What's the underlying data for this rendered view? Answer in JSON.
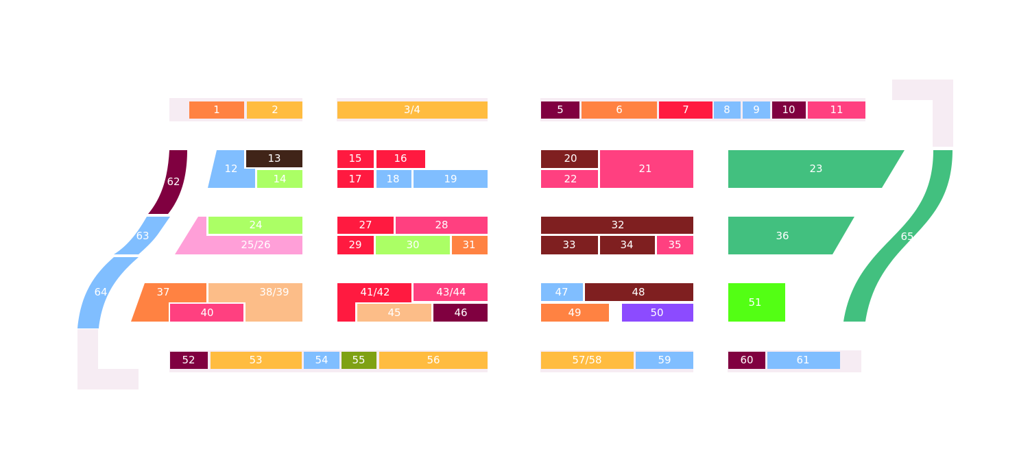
{
  "colors": {
    "orange": "#FF8242",
    "amber": "#FFBC40",
    "maroon": "#800040",
    "red": "#FF1A40",
    "sky": "#80BEFF",
    "pink": "#FF4080",
    "darkbrown": "#402418",
    "brown": "#7F1F20",
    "lime": "#ABFF65",
    "pinklight": "#FF9FD8",
    "peach": "#FCBD88",
    "green": "#42C07F",
    "brightgreen": "#53FF14",
    "olive": "#7FA114",
    "purple": "#8C4BFF",
    "frame": "#F6ECF3"
  },
  "blocks": [
    {
      "id": "1",
      "label": "1",
      "color": "orange"
    },
    {
      "id": "2",
      "label": "2",
      "color": "amber"
    },
    {
      "id": "3-4",
      "label": "3/4",
      "color": "amber"
    },
    {
      "id": "5",
      "label": "5",
      "color": "maroon"
    },
    {
      "id": "6",
      "label": "6",
      "color": "orange"
    },
    {
      "id": "7",
      "label": "7",
      "color": "red"
    },
    {
      "id": "8",
      "label": "8",
      "color": "sky"
    },
    {
      "id": "9",
      "label": "9",
      "color": "sky"
    },
    {
      "id": "10",
      "label": "10",
      "color": "maroon"
    },
    {
      "id": "11",
      "label": "11",
      "color": "pink"
    },
    {
      "id": "12",
      "label": "12",
      "color": "sky"
    },
    {
      "id": "13",
      "label": "13",
      "color": "darkbrown"
    },
    {
      "id": "14",
      "label": "14",
      "color": "lime"
    },
    {
      "id": "15",
      "label": "15",
      "color": "red"
    },
    {
      "id": "16",
      "label": "16",
      "color": "red"
    },
    {
      "id": "17",
      "label": "17",
      "color": "red"
    },
    {
      "id": "18",
      "label": "18",
      "color": "sky"
    },
    {
      "id": "19",
      "label": "19",
      "color": "sky"
    },
    {
      "id": "20",
      "label": "20",
      "color": "brown"
    },
    {
      "id": "21",
      "label": "21",
      "color": "pink"
    },
    {
      "id": "22",
      "label": "22",
      "color": "pink"
    },
    {
      "id": "23",
      "label": "23",
      "color": "green"
    },
    {
      "id": "24",
      "label": "24",
      "color": "lime"
    },
    {
      "id": "25-26",
      "label": "25/26",
      "color": "pinklight"
    },
    {
      "id": "27",
      "label": "27",
      "color": "red"
    },
    {
      "id": "28",
      "label": "28",
      "color": "pink"
    },
    {
      "id": "29",
      "label": "29",
      "color": "red"
    },
    {
      "id": "30",
      "label": "30",
      "color": "lime"
    },
    {
      "id": "31",
      "label": "31",
      "color": "orange"
    },
    {
      "id": "32",
      "label": "32",
      "color": "brown"
    },
    {
      "id": "33",
      "label": "33",
      "color": "brown"
    },
    {
      "id": "34",
      "label": "34",
      "color": "brown"
    },
    {
      "id": "35",
      "label": "35",
      "color": "pink"
    },
    {
      "id": "36",
      "label": "36",
      "color": "green"
    },
    {
      "id": "37",
      "label": "37",
      "color": "orange"
    },
    {
      "id": "38-39",
      "label": "38/39",
      "color": "peach"
    },
    {
      "id": "40",
      "label": "40",
      "color": "pink"
    },
    {
      "id": "41-42",
      "label": "41/42",
      "color": "red"
    },
    {
      "id": "43-44",
      "label": "43/44",
      "color": "pink"
    },
    {
      "id": "45",
      "label": "45",
      "color": "peach"
    },
    {
      "id": "46",
      "label": "46",
      "color": "maroon"
    },
    {
      "id": "47",
      "label": "47",
      "color": "sky"
    },
    {
      "id": "48",
      "label": "48",
      "color": "brown"
    },
    {
      "id": "49",
      "label": "49",
      "color": "orange"
    },
    {
      "id": "50",
      "label": "50",
      "color": "purple"
    },
    {
      "id": "51",
      "label": "51",
      "color": "brightgreen"
    },
    {
      "id": "52",
      "label": "52",
      "color": "maroon"
    },
    {
      "id": "53",
      "label": "53",
      "color": "amber"
    },
    {
      "id": "54",
      "label": "54",
      "color": "sky"
    },
    {
      "id": "55",
      "label": "55",
      "color": "olive"
    },
    {
      "id": "56",
      "label": "56",
      "color": "amber"
    },
    {
      "id": "57-58",
      "label": "57/58",
      "color": "amber"
    },
    {
      "id": "59",
      "label": "59",
      "color": "sky"
    },
    {
      "id": "60",
      "label": "60",
      "color": "maroon"
    },
    {
      "id": "61",
      "label": "61",
      "color": "sky"
    },
    {
      "id": "62",
      "label": "62",
      "color": "maroon"
    },
    {
      "id": "63",
      "label": "63",
      "color": "sky"
    },
    {
      "id": "64",
      "label": "64",
      "color": "sky"
    },
    {
      "id": "65",
      "label": "65",
      "color": "green"
    }
  ]
}
